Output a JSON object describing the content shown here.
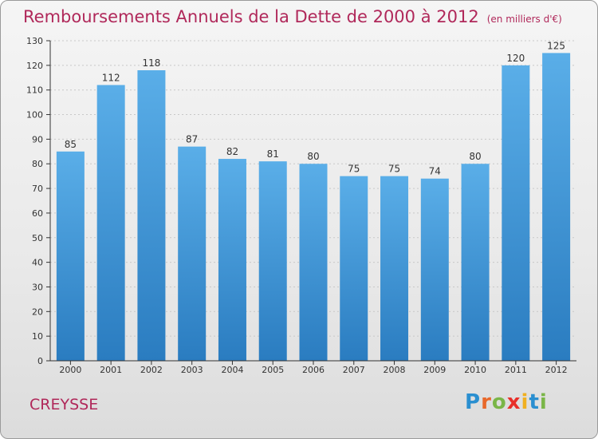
{
  "title": "Remboursements Annuels de la Dette de 2000 à 2012",
  "unit": "(en milliers d'€)",
  "place": "CREYSSE",
  "logo_text": "Proxiti",
  "colors": {
    "title": "#b0285a",
    "bar_top": "#5aaee8",
    "bar_bottom": "#2a7cc0",
    "axis": "#333333",
    "grid": "#c8c8c8"
  },
  "chart_data": {
    "type": "bar",
    "categories": [
      "2000",
      "2001",
      "2002",
      "2003",
      "2004",
      "2005",
      "2006",
      "2007",
      "2008",
      "2009",
      "2010",
      "2011",
      "2012"
    ],
    "values": [
      85,
      112,
      118,
      87,
      82,
      81,
      80,
      75,
      75,
      74,
      80,
      120,
      125
    ],
    "ylim": [
      0,
      130
    ],
    "yticks": [
      0,
      10,
      20,
      30,
      40,
      50,
      60,
      70,
      80,
      90,
      100,
      110,
      120,
      130
    ],
    "grid": true
  }
}
